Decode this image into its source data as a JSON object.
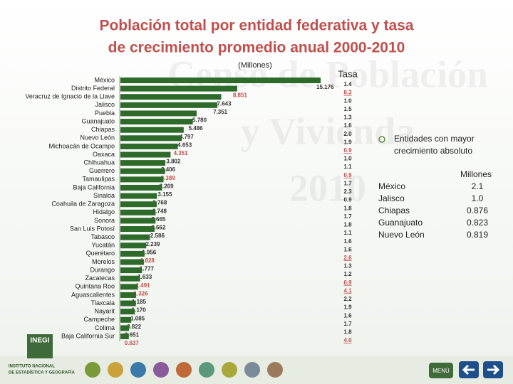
{
  "chart_data": {
    "type": "bar",
    "title": "Población total por entidad federativa y tasa",
    "title_line2": "de crecimiento promedio anual 2000-2010",
    "unit_label": "(Millones)",
    "rate_title": "Tasa",
    "watermark": [
      "Censo de Población",
      "y Vivienda",
      "2010"
    ],
    "color": "#2e6b2a",
    "highlight_color": "#c0504d",
    "categories": [
      "México",
      "Distrito Federal",
      "Veracruz de Ignacio de la Llave",
      "Jalisco",
      "Puebla",
      "Guanajuato",
      "Chiapas",
      "Nuevo León",
      "Michoacán de Ocampo",
      "Oaxaca",
      "Chihuahua",
      "Guerrero",
      "Tamaulipas",
      "Baja California",
      "Sinaloa",
      "Coahuila de Zaragoza",
      "Hidalgo",
      "Sonora",
      "San Luis Potosí",
      "Tabasco",
      "Yucatán",
      "Querétaro",
      "Morelos",
      "Durango",
      "Zacatecas",
      "Quintana Roo",
      "Aguascalientes",
      "Tlaxcala",
      "Nayarit",
      "Campeche",
      "Colima",
      "Baja California Sur"
    ],
    "values": [
      15.176,
      8.851,
      7.643,
      7.351,
      5.78,
      5.486,
      4.797,
      4.653,
      4.351,
      3.802,
      3.406,
      3.389,
      3.269,
      3.155,
      2.768,
      2.748,
      2.665,
      2.662,
      2.586,
      2.239,
      1.956,
      1.828,
      1.777,
      1.633,
      1.491,
      1.326,
      1.185,
      1.17,
      1.085,
      0.822,
      0.651,
      0.637
    ],
    "value_labels": [
      "15.176",
      "8.851",
      "7.643",
      "7.351",
      "5.780",
      "5.486",
      "4.797",
      "4.653",
      "4.351",
      "3.802",
      "3.406",
      "3.389",
      "3.269",
      "3.155",
      "2.768",
      "2.748",
      "2.665",
      "2.662",
      "2.586",
      "2.239",
      "1.956",
      "1.828",
      "1.777",
      "1.633",
      "1.491",
      "1.326",
      "1.185",
      "1.170",
      "1.085",
      "0.822",
      "0.651",
      "0.637"
    ],
    "rates": [
      1.4,
      0.3,
      1.0,
      1.5,
      1.3,
      1.6,
      2.0,
      1.9,
      0.9,
      1.0,
      1.1,
      0.9,
      1.7,
      2.3,
      0.9,
      1.8,
      1.7,
      1.8,
      1.1,
      1.6,
      1.6,
      2.6,
      1.3,
      1.2,
      0.9,
      4.1,
      2.2,
      1.9,
      1.6,
      1.7,
      1.8,
      4.0
    ],
    "rate_labels": [
      "1.4",
      "0.3",
      "1.0",
      "1.5",
      "1.3",
      "1.6",
      "2.0",
      "1.9",
      "0.9",
      "1.0",
      "1.1",
      "0.9",
      "1.7",
      "2.3",
      "0.9",
      "1.8",
      "1.7",
      "1.8",
      "1.1",
      "1.6",
      "1.6",
      "2.6",
      "1.3",
      "1.2",
      "0.9",
      "4.1",
      "2.2",
      "1.9",
      "1.6",
      "1.7",
      "1.8",
      "4.0"
    ],
    "highlight": [
      false,
      true,
      false,
      false,
      false,
      false,
      false,
      false,
      true,
      false,
      false,
      true,
      false,
      false,
      false,
      false,
      false,
      false,
      false,
      false,
      false,
      true,
      false,
      false,
      true,
      true,
      false,
      false,
      false,
      false,
      false,
      true
    ]
  },
  "side_panel": {
    "title": [
      "Entidades con mayor",
      "crecimiento absoluto"
    ],
    "column_title": "Millones",
    "rows": [
      [
        "México",
        "2.1"
      ],
      [
        "Jalisco",
        "1.0"
      ],
      [
        "Chiapas",
        "0.876"
      ],
      [
        "Guanajuato",
        "0.823"
      ],
      [
        "Nuevo León",
        "0.819"
      ]
    ]
  },
  "footer": {
    "logo": "INEGI",
    "institute": [
      "INSTITUTO NACIONAL",
      "DE ESTADÍSTICA Y GEOGRAFÍA"
    ],
    "menu": "MENÚ"
  }
}
